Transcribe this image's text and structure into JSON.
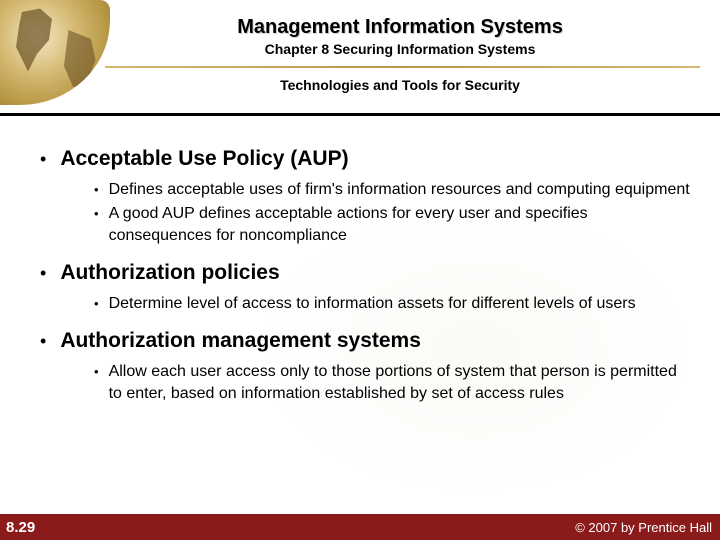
{
  "header": {
    "title": "Management Information Systems",
    "chapter": "Chapter 8 Securing Information Systems",
    "subtitle": "Technologies and Tools for Security"
  },
  "content": {
    "items": [
      {
        "heading": "Acceptable Use Policy (AUP)",
        "subs": [
          "Defines acceptable uses of firm's information resources and computing equipment",
          "A good AUP defines acceptable actions for every user and specifies consequences for noncompliance"
        ]
      },
      {
        "heading": "Authorization policies",
        "subs": [
          "Determine level of access to information assets for different levels of users"
        ]
      },
      {
        "heading": "Authorization management systems",
        "subs": [
          "Allow each user access only to those portions of system that person is permitted to enter, based on information established by set of access rules"
        ]
      }
    ]
  },
  "footer": {
    "page": "8.29",
    "copyright": "© 2007 by Prentice Hall"
  },
  "colors": {
    "footer_bg": "#8b1a1a",
    "globe_light": "#f4e8c1",
    "globe_dark": "#8a6d2f",
    "text": "#000000"
  }
}
